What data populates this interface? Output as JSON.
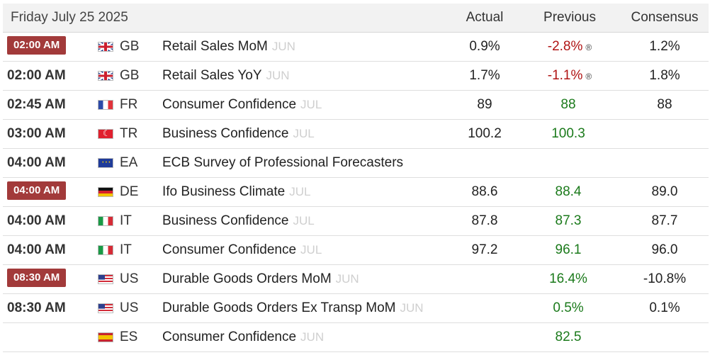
{
  "header": {
    "date": "Friday July 25 2025",
    "actual": "Actual",
    "previous": "Previous",
    "consensus": "Consensus"
  },
  "colors": {
    "badge": "#a23a3a",
    "positive": "#1b7a1b",
    "negative": "#b01414"
  },
  "rows": [
    {
      "time": "02:00 AM",
      "badge": true,
      "flag": "gb-flag-icon",
      "country": "GB",
      "event": "Retail Sales MoM",
      "ref": "JUN",
      "actual": "0.9%",
      "previous": "-2.8%",
      "prev_sign": "neg",
      "revised": "®",
      "consensus": "1.2%"
    },
    {
      "time": "02:00 AM",
      "badge": false,
      "flag": "gb-flag-icon",
      "country": "GB",
      "event": "Retail Sales YoY",
      "ref": "JUN",
      "actual": "1.7%",
      "previous": "-1.1%",
      "prev_sign": "neg",
      "revised": "®",
      "consensus": "1.8%"
    },
    {
      "time": "02:45 AM",
      "badge": false,
      "flag": "fr-flag-icon",
      "country": "FR",
      "event": "Consumer Confidence",
      "ref": "JUL",
      "actual": "89",
      "previous": "88",
      "prev_sign": "pos",
      "revised": "",
      "consensus": "88"
    },
    {
      "time": "03:00 AM",
      "badge": false,
      "flag": "tr-flag-icon",
      "country": "TR",
      "event": "Business Confidence",
      "ref": "JUL",
      "actual": "100.2",
      "previous": "100.3",
      "prev_sign": "pos",
      "revised": "",
      "consensus": ""
    },
    {
      "time": "04:00 AM",
      "badge": false,
      "flag": "ea-flag-icon",
      "country": "EA",
      "event": "ECB Survey of Professional Forecasters",
      "ref": "",
      "actual": "",
      "previous": "",
      "prev_sign": "pos",
      "revised": "",
      "consensus": ""
    },
    {
      "time": "04:00 AM",
      "badge": true,
      "flag": "de-flag-icon",
      "country": "DE",
      "event": "Ifo Business Climate",
      "ref": "JUL",
      "actual": "88.6",
      "previous": "88.4",
      "prev_sign": "pos",
      "revised": "",
      "consensus": "89.0"
    },
    {
      "time": "04:00 AM",
      "badge": false,
      "flag": "it-flag-icon",
      "country": "IT",
      "event": "Business Confidence",
      "ref": "JUL",
      "actual": "87.8",
      "previous": "87.3",
      "prev_sign": "pos",
      "revised": "",
      "consensus": "87.7"
    },
    {
      "time": "04:00 AM",
      "badge": false,
      "flag": "it-flag-icon",
      "country": "IT",
      "event": "Consumer Confidence",
      "ref": "JUL",
      "actual": "97.2",
      "previous": "96.1",
      "prev_sign": "pos",
      "revised": "",
      "consensus": "96.0"
    },
    {
      "time": "08:30 AM",
      "badge": true,
      "flag": "us-flag-icon",
      "country": "US",
      "event": "Durable Goods Orders MoM",
      "ref": "JUN",
      "actual": "",
      "previous": "16.4%",
      "prev_sign": "pos",
      "revised": "",
      "consensus": "-10.8%"
    },
    {
      "time": "08:30 AM",
      "badge": false,
      "flag": "us-flag-icon",
      "country": "US",
      "event": "Durable Goods Orders Ex Transp MoM",
      "ref": "JUN",
      "actual": "",
      "previous": "0.5%",
      "prev_sign": "pos",
      "revised": "",
      "consensus": "0.1%"
    },
    {
      "time": "",
      "badge": false,
      "flag": "es-flag-icon",
      "country": "ES",
      "event": "Consumer Confidence",
      "ref": "JUN",
      "actual": "",
      "previous": "82.5",
      "prev_sign": "pos",
      "revised": "",
      "consensus": ""
    }
  ]
}
